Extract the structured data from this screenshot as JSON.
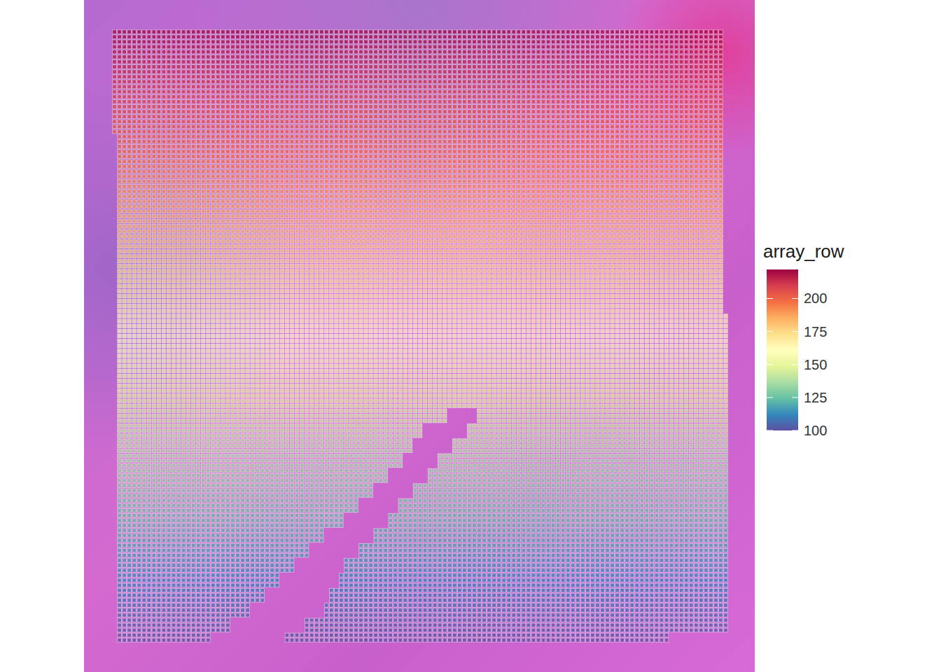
{
  "chart_data": {
    "type": "spatial",
    "xlim": [
      99.5,
      224.5
    ],
    "ylim": [
      99.5,
      222.5
    ],
    "tick_labels": false,
    "colorbar": {
      "title": "array_row",
      "range": [
        100,
        222
      ],
      "ticks": [
        100,
        125,
        150,
        175,
        200
      ]
    },
    "spots": [
      {
        "rows": [
          202,
          222
        ],
        "cols": [
          [
            100,
            223
          ]
        ]
      },
      {
        "rows": [
          166,
          201
        ],
        "cols": [
          [
            101,
            223
          ]
        ]
      },
      {
        "rows": [
          147,
          165
        ],
        "cols": [
          [
            101,
            224
          ]
        ]
      },
      {
        "rows": [
          144,
          146
        ],
        "cols": [
          [
            101,
            167
          ],
          [
            174,
            224
          ]
        ]
      },
      {
        "rows": [
          141,
          143
        ],
        "cols": [
          [
            101,
            162
          ],
          [
            172,
            224
          ]
        ]
      },
      {
        "rows": [
          138,
          140
        ],
        "cols": [
          [
            101,
            160
          ],
          [
            169,
            224
          ]
        ]
      },
      {
        "rows": [
          135,
          137
        ],
        "cols": [
          [
            101,
            158
          ],
          [
            166,
            224
          ]
        ]
      },
      {
        "rows": [
          132,
          134
        ],
        "cols": [
          [
            101,
            155
          ],
          [
            164,
            224
          ]
        ]
      },
      {
        "rows": [
          129,
          131
        ],
        "cols": [
          [
            101,
            152
          ],
          [
            161,
            224
          ]
        ]
      },
      {
        "rows": [
          126,
          128
        ],
        "cols": [
          [
            101,
            149
          ],
          [
            158,
            224
          ]
        ]
      },
      {
        "rows": [
          123,
          125
        ],
        "cols": [
          [
            101,
            146
          ],
          [
            156,
            224
          ]
        ]
      },
      {
        "rows": [
          120,
          122
        ],
        "cols": [
          [
            101,
            142
          ],
          [
            153,
            224
          ]
        ]
      },
      {
        "rows": [
          117,
          119
        ],
        "cols": [
          [
            101,
            139
          ],
          [
            150,
            224
          ]
        ]
      },
      {
        "rows": [
          114,
          116
        ],
        "cols": [
          [
            101,
            136
          ],
          [
            147,
            224
          ]
        ]
      },
      {
        "rows": [
          111,
          113
        ],
        "cols": [
          [
            101,
            133
          ],
          [
            146,
            224
          ]
        ]
      },
      {
        "rows": [
          108,
          110
        ],
        "cols": [
          [
            101,
            130
          ],
          [
            144,
            224
          ]
        ]
      },
      {
        "rows": [
          105,
          107
        ],
        "cols": [
          [
            101,
            127
          ],
          [
            143,
            224
          ]
        ]
      },
      {
        "rows": [
          102,
          104
        ],
        "cols": [
          [
            101,
            123
          ],
          [
            139,
            224
          ]
        ]
      },
      {
        "rows": [
          100,
          101
        ],
        "cols": [
          [
            101,
            119
          ],
          [
            135,
            212
          ]
        ]
      }
    ]
  }
}
